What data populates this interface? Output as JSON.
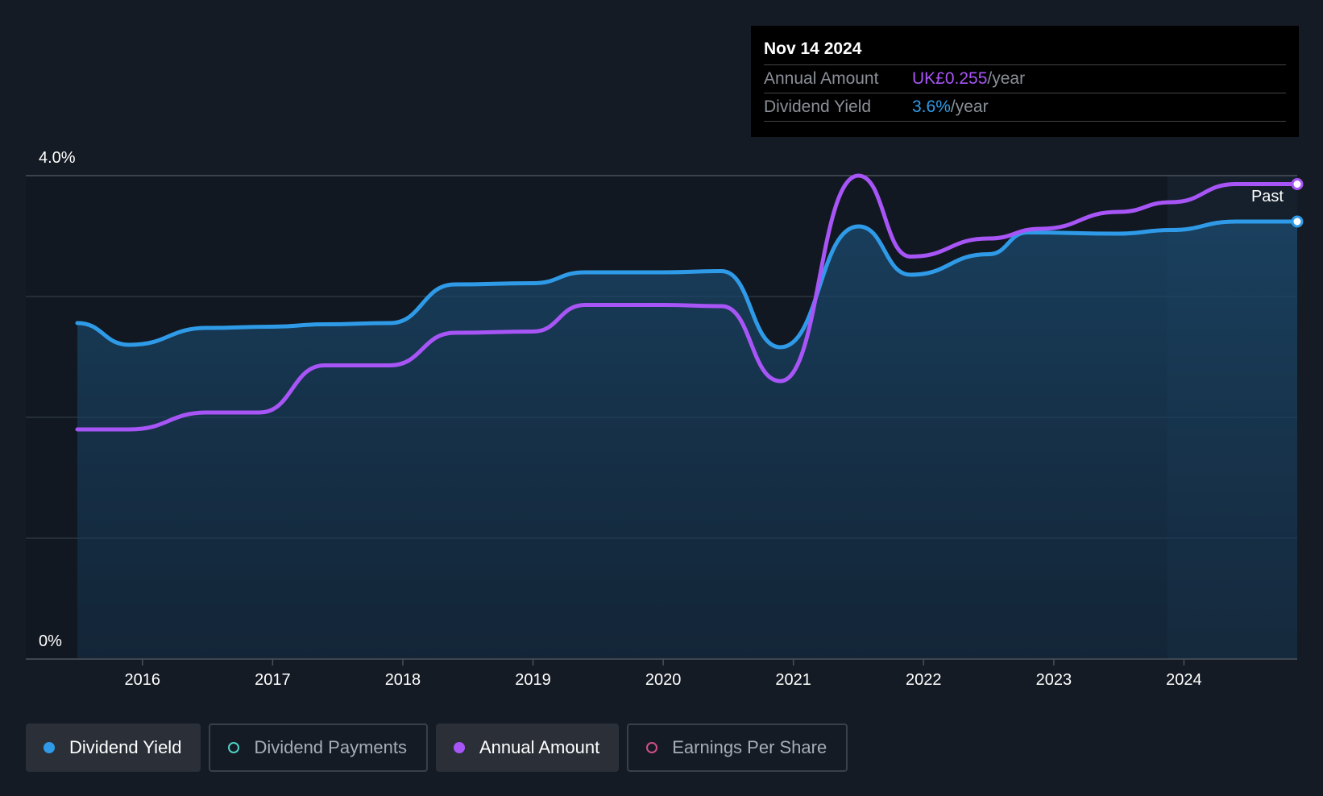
{
  "tooltip": {
    "date": "Nov 14 2024",
    "rows": [
      {
        "key": "Annual Amount",
        "value": "UK£0.255",
        "unit": "/year",
        "color": "#a855f7"
      },
      {
        "key": "Dividend Yield",
        "value": "3.6%",
        "unit": "/year",
        "color": "#2f9be8"
      }
    ]
  },
  "past_label": "Past",
  "legend": [
    {
      "label": "Dividend Yield",
      "color": "#2f9be8",
      "filled": true,
      "active": true
    },
    {
      "label": "Dividend Payments",
      "color": "#4fd1c5",
      "filled": false,
      "active": false
    },
    {
      "label": "Annual Amount",
      "color": "#a855f7",
      "filled": true,
      "active": true
    },
    {
      "label": "Earnings Per Share",
      "color": "#d14f87",
      "filled": false,
      "active": false
    }
  ],
  "chart_data": {
    "type": "line",
    "y_tick_labels": [
      "4.0%",
      "0%"
    ],
    "ylim": [
      0,
      4.0
    ],
    "x_tick_labels": [
      "2016",
      "2017",
      "2018",
      "2019",
      "2020",
      "2021",
      "2022",
      "2023",
      "2024"
    ],
    "x_range": [
      2015.5,
      2024.87
    ],
    "grid": true,
    "series": [
      {
        "name": "Dividend Yield",
        "color": "#2f9be8",
        "area": true,
        "points": [
          [
            2015.5,
            2.78
          ],
          [
            2015.9,
            2.6
          ],
          [
            2016.5,
            2.74
          ],
          [
            2017.0,
            2.75
          ],
          [
            2017.4,
            2.77
          ],
          [
            2017.9,
            2.78
          ],
          [
            2018.4,
            3.1
          ],
          [
            2019.0,
            3.11
          ],
          [
            2019.4,
            3.2
          ],
          [
            2020.0,
            3.2
          ],
          [
            2020.45,
            3.21
          ],
          [
            2020.9,
            2.58
          ],
          [
            2021.5,
            3.58
          ],
          [
            2021.9,
            3.18
          ],
          [
            2022.5,
            3.35
          ],
          [
            2022.8,
            3.53
          ],
          [
            2023.5,
            3.52
          ],
          [
            2023.9,
            3.55
          ],
          [
            2024.4,
            3.62
          ],
          [
            2024.87,
            3.62
          ]
        ]
      },
      {
        "name": "Annual Amount",
        "color": "#a855f7",
        "area": false,
        "points": [
          [
            2015.5,
            1.9
          ],
          [
            2015.9,
            1.9
          ],
          [
            2016.5,
            2.04
          ],
          [
            2016.9,
            2.04
          ],
          [
            2017.4,
            2.43
          ],
          [
            2017.9,
            2.43
          ],
          [
            2018.4,
            2.7
          ],
          [
            2019.0,
            2.71
          ],
          [
            2019.4,
            2.93
          ],
          [
            2020.0,
            2.93
          ],
          [
            2020.45,
            2.92
          ],
          [
            2020.9,
            2.3
          ],
          [
            2021.5,
            4.0
          ],
          [
            2021.9,
            3.33
          ],
          [
            2022.5,
            3.48
          ],
          [
            2022.9,
            3.56
          ],
          [
            2023.5,
            3.7
          ],
          [
            2023.9,
            3.78
          ],
          [
            2024.4,
            3.93
          ],
          [
            2024.87,
            3.93
          ]
        ]
      }
    ]
  }
}
